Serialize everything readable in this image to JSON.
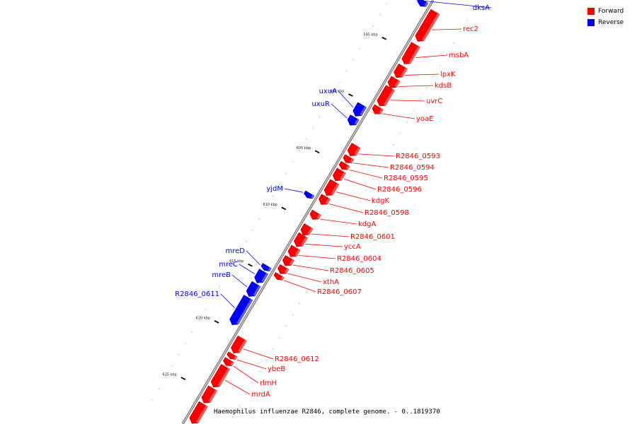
{
  "caption": "Haemophilus influenzae R2846, complete genome. - 0..1819370",
  "legend": [
    {
      "label": "Forward",
      "color": "#ff0000"
    },
    {
      "label": "Reverse",
      "color": "#0000ff"
    }
  ],
  "colors": {
    "forward": "#ff0000",
    "reverse": "#0000ff",
    "backbone": "#aaaaaa"
  },
  "position_units": "kbp",
  "ticks": [
    {
      "pos": 595,
      "label": "595 kbp"
    },
    {
      "pos": 600,
      "label": "600 kbp"
    },
    {
      "pos": 605,
      "label": "605 kbp"
    },
    {
      "pos": 610,
      "label": "610 kbp"
    },
    {
      "pos": 615,
      "label": "615 kbp"
    },
    {
      "pos": 620,
      "label": "620 kbp"
    },
    {
      "pos": 625,
      "label": "625 kbp"
    }
  ],
  "genes": [
    {
      "name": "dksA",
      "strand": "reverse",
      "start": 591.0,
      "end": 591.5
    },
    {
      "name": "rec2",
      "strand": "forward",
      "start": 591.3,
      "end": 593.9
    },
    {
      "name": "msbA",
      "strand": "forward",
      "start": 594.2,
      "end": 595.9
    },
    {
      "name": "lpxK",
      "strand": "forward",
      "start": 596.1,
      "end": 597.1
    },
    {
      "name": "kdsB",
      "strand": "forward",
      "start": 597.2,
      "end": 598.0
    },
    {
      "name": "uvrC",
      "strand": "forward",
      "start": 598.0,
      "end": 599.6
    },
    {
      "name": "yoaE",
      "strand": "forward",
      "start": 599.7,
      "end": 600.3
    },
    {
      "name": "uxuA",
      "strand": "reverse",
      "start": 600.2,
      "end": 601.2
    },
    {
      "name": "uxuR",
      "strand": "reverse",
      "start": 601.3,
      "end": 602.0
    },
    {
      "name": "R2846_0593",
      "strand": "forward",
      "start": 603.1,
      "end": 604.0
    },
    {
      "name": "R2846_0594",
      "strand": "forward",
      "start": 604.1,
      "end": 604.6
    },
    {
      "name": "R2846_0595",
      "strand": "forward",
      "start": 604.7,
      "end": 605.2
    },
    {
      "name": "R2846_0596",
      "strand": "forward",
      "start": 605.3,
      "end": 606.2
    },
    {
      "name": "kdgK",
      "strand": "forward",
      "start": 606.3,
      "end": 607.5
    },
    {
      "name": "R2846_0598",
      "strand": "forward",
      "start": 607.6,
      "end": 608.3
    },
    {
      "name": "yjdM",
      "strand": "reverse",
      "start": 608.0,
      "end": 608.4
    },
    {
      "name": "kdgA",
      "strand": "forward",
      "start": 609.0,
      "end": 609.6
    },
    {
      "name": "R2846_0601",
      "strand": "forward",
      "start": 610.2,
      "end": 611.0
    },
    {
      "name": "yccA",
      "strand": "forward",
      "start": 611.0,
      "end": 612.0
    },
    {
      "name": "R2846_0604",
      "strand": "forward",
      "start": 612.1,
      "end": 612.9
    },
    {
      "name": "R2846_0605",
      "strand": "forward",
      "start": 613.0,
      "end": 613.7
    },
    {
      "name": "xthA",
      "strand": "forward",
      "start": 613.8,
      "end": 614.4
    },
    {
      "name": "R2846_0607",
      "strand": "forward",
      "start": 614.5,
      "end": 614.9
    },
    {
      "name": "mreD",
      "strand": "reverse",
      "start": 614.4,
      "end": 614.8
    },
    {
      "name": "mreC",
      "strand": "reverse",
      "start": 614.9,
      "end": 615.9
    },
    {
      "name": "mreB",
      "strand": "reverse",
      "start": 616.0,
      "end": 617.1
    },
    {
      "name": "R2846_0611",
      "strand": "reverse",
      "start": 617.2,
      "end": 619.6
    },
    {
      "name": "R2846_0612",
      "strand": "forward",
      "start": 620.1,
      "end": 621.4
    },
    {
      "name": "ybeB",
      "strand": "forward",
      "start": 621.5,
      "end": 621.9
    },
    {
      "name": "rlmH",
      "strand": "forward",
      "start": 622.0,
      "end": 622.5
    },
    {
      "name": "mrdA",
      "strand": "forward",
      "start": 622.6,
      "end": 624.4
    },
    {
      "name": "",
      "strand": "forward",
      "start": 624.5,
      "end": 625.8
    },
    {
      "name": "",
      "strand": "forward",
      "start": 625.9,
      "end": 627.6
    }
  ]
}
